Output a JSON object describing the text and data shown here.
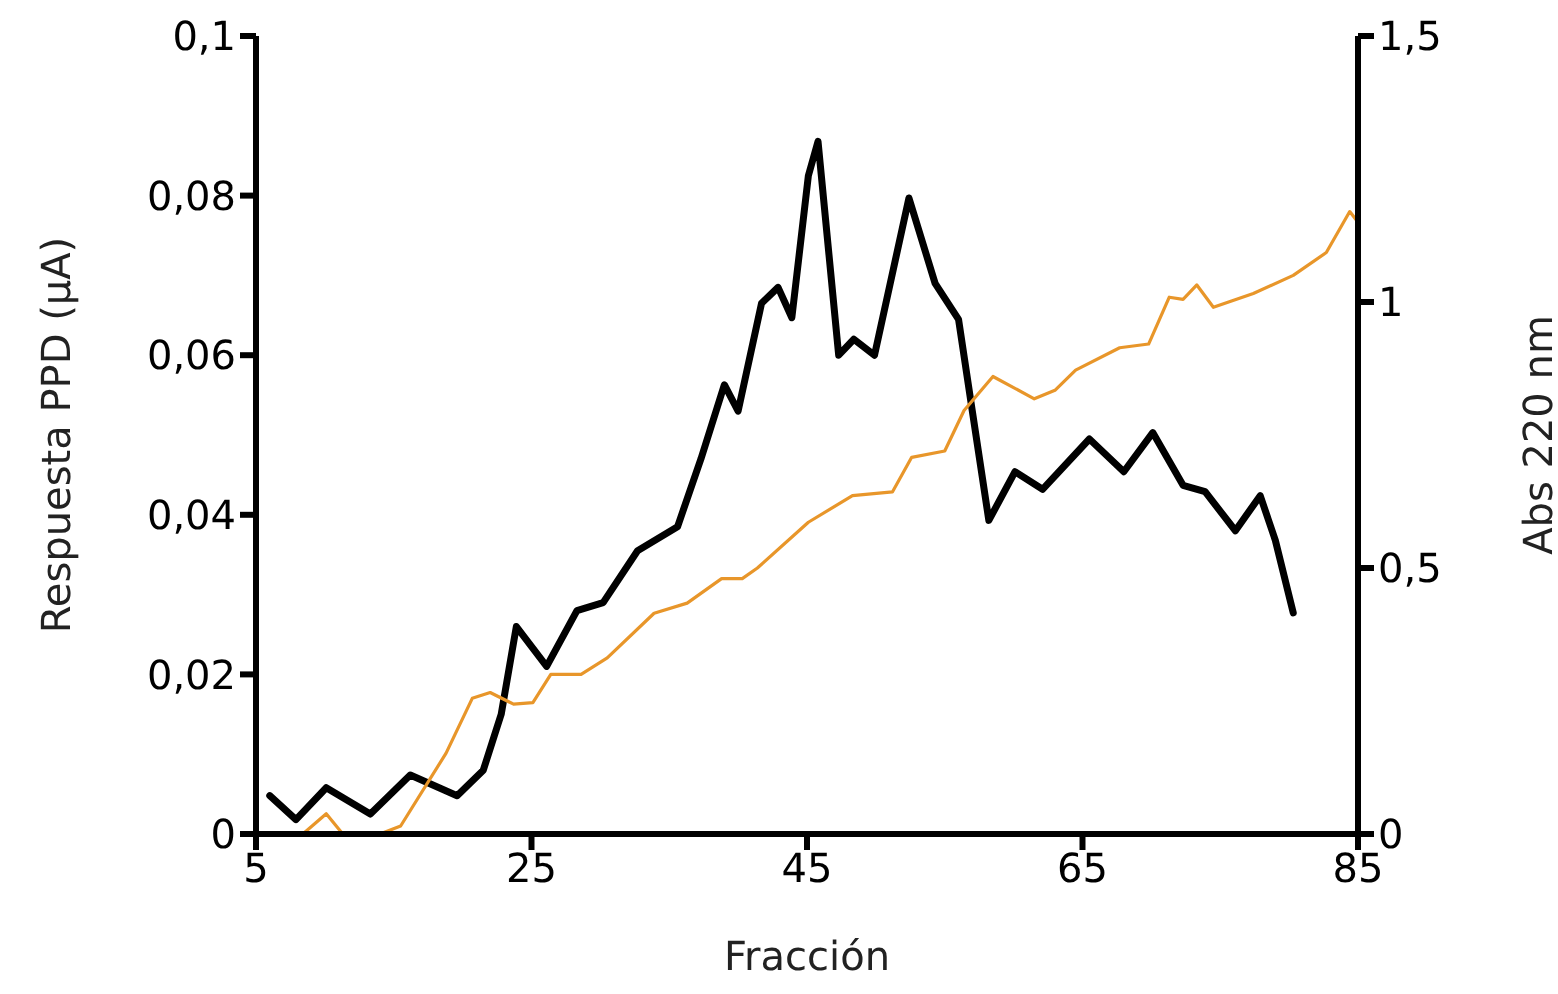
{
  "chart_data": {
    "type": "line",
    "xlabel": "Fracción",
    "ylabel": "Respuesta PPD (µA)",
    "y2label": "Abs 220 nm",
    "xlim": [
      5,
      85
    ],
    "xticks": [
      5,
      25,
      45,
      65,
      85
    ],
    "ylim": [
      0,
      0.1
    ],
    "yticks": [
      0,
      {
        "value": 0.02,
        "label": "0,02"
      },
      {
        "value": 0.04,
        "label": "0,04"
      },
      {
        "value": 0.06,
        "label": "0,06"
      },
      {
        "value": 0.08,
        "label": "0,08"
      },
      {
        "value": 0.1,
        "label": "0,1"
      }
    ],
    "y2lim": [
      0,
      1.5
    ],
    "y2ticks": [
      0,
      {
        "value": 0.5,
        "label": "0,5"
      },
      1,
      {
        "value": 1.5,
        "label": "1,5"
      }
    ],
    "marker": "none",
    "line_style": "solid",
    "series": [
      {
        "color": "#000000",
        "x": [
          6.0,
          7.9,
          10.1,
          13.3,
          16.2,
          19.6,
          21.5,
          22.8,
          23.9,
          26.1,
          28.3,
          30.2,
          32.7,
          35.6,
          37.3,
          39.0,
          40.0,
          41.7,
          42.9,
          43.9,
          45.1,
          45.8,
          47.3,
          48.4,
          49.9,
          52.4,
          54.3,
          56.0,
          57.0,
          58.2,
          60.1,
          62.1,
          65.5,
          68.0,
          70.1,
          72.3,
          73.9,
          76.1,
          77.9,
          79.0,
          80.3
        ],
        "values": [
          0.0048,
          0.0018,
          0.0058,
          0.0025,
          0.0074,
          0.0048,
          0.008,
          0.015,
          0.026,
          0.021,
          0.028,
          0.029,
          0.0355,
          0.0385,
          0.047,
          0.0563,
          0.053,
          0.0665,
          0.0685,
          0.0647,
          0.0825,
          0.0868,
          0.06,
          0.062,
          0.06,
          0.0797,
          0.069,
          0.0645,
          0.053,
          0.0393,
          0.0454,
          0.0432,
          0.0495,
          0.0454,
          0.0503,
          0.0437,
          0.0429,
          0.038,
          0.0424,
          0.0368,
          0.0277
        ]
      },
      {
        "color": "#e8962a",
        "axis": "y2",
        "x": [
          5,
          8.4,
          10.1,
          11.3,
          14.0,
          15.5,
          18.8,
          20.7,
          22.0,
          23.7,
          25.1,
          26.4,
          28.6,
          30.5,
          33.9,
          36.3,
          38.8,
          40.3,
          41.4,
          45.1,
          48.3,
          51.2,
          52.6,
          55.0,
          56.4,
          58.5,
          61.5,
          63.0,
          64.5,
          67.7,
          69.8,
          71.3,
          72.3,
          73.3,
          74.5,
          77.4,
          80.3,
          82.7,
          84.4,
          85
        ],
        "values": [
          0,
          0,
          0.038,
          0,
          0,
          0.015,
          0.152,
          0.255,
          0.266,
          0.244,
          0.247,
          0.3,
          0.3,
          0.331,
          0.415,
          0.434,
          0.48,
          0.48,
          0.5,
          0.586,
          0.636,
          0.643,
          0.708,
          0.72,
          0.796,
          0.86,
          0.818,
          0.834,
          0.872,
          0.914,
          0.921,
          1.009,
          1.005,
          1.032,
          0.99,
          1.016,
          1.05,
          1.093,
          1.17,
          1.15
        ]
      }
    ]
  }
}
